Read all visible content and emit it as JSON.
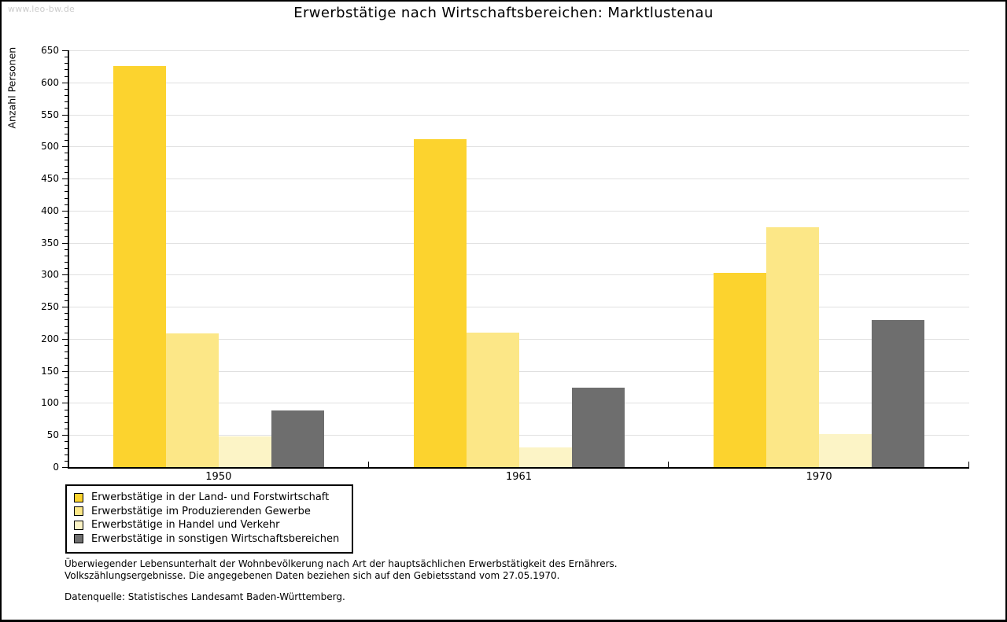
{
  "watermark": "www.leo-bw.de",
  "title": "Erwerbstätige nach Wirtschaftsbereichen: Marktlustenau",
  "chart_data": {
    "type": "bar",
    "title": "Erwerbstätige nach Wirtschaftsbereichen: Marktlustenau",
    "categories": [
      "1950",
      "1961",
      "1970"
    ],
    "series": [
      {
        "name": "Erwerbstätige in der Land- und Forstwirtschaft",
        "color": "#fcd32e",
        "values": [
          626,
          512,
          303
        ]
      },
      {
        "name": "Erwerbstätige im Produzierenden Gewerbe",
        "color": "#fce787",
        "values": [
          209,
          210,
          374
        ]
      },
      {
        "name": "Erwerbstätige in Handel und Verkehr",
        "color": "#fcf4c6",
        "values": [
          48,
          31,
          52
        ]
      },
      {
        "name": "Erwerbstätige in sonstigen Wirtschaftsbereichen",
        "color": "#6e6e6e",
        "values": [
          88,
          124,
          229
        ]
      }
    ],
    "xlabel": "",
    "ylabel": "Anzahl Personen",
    "ylim": [
      0,
      650
    ],
    "ytick_step": 50,
    "y_minor_tick_step": 10,
    "grid": true,
    "gridline_color": "#e0e0e0",
    "legend_position": "bottom-left"
  },
  "footnotes": {
    "line1": "Überwiegender Lebensunterhalt der Wohnbevölkerung nach Art der hauptsächlichen Erwerbstätigkeit des Ernährers.",
    "line2": "Volkszählungsergebnisse. Die angegebenen Daten beziehen sich auf den Gebietsstand vom 27.05.1970.",
    "source": "Datenquelle: Statistisches Landesamt Baden-Württemberg."
  }
}
